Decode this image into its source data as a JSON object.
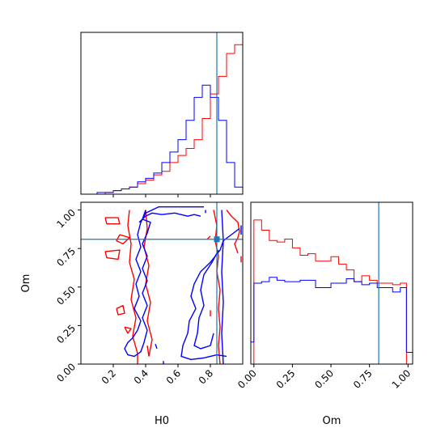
{
  "chart_data": {
    "type": "corner",
    "params": [
      "H0",
      "Om"
    ],
    "truth": {
      "H0": 0.84,
      "Om": 0.81
    },
    "colors": {
      "red": "#ff0000",
      "blue": "#0000ff",
      "truth": "#1f77b4"
    },
    "panels": [
      {
        "id": "H0-hist",
        "type": "histogram",
        "xlim": [
          0.0,
          1.0
        ],
        "bin_edges": [
          0.0,
          0.05,
          0.1,
          0.15,
          0.2,
          0.25,
          0.3,
          0.35,
          0.4,
          0.45,
          0.5,
          0.55,
          0.6,
          0.65,
          0.7,
          0.75,
          0.8,
          0.85,
          0.9,
          0.95,
          1.0
        ],
        "series": [
          {
            "name": "red",
            "color": "#ff0000",
            "values": [
              0,
              0,
              0,
              0.01,
              0.02,
              0.03,
              0.04,
              0.06,
              0.08,
              0.11,
              0.13,
              0.18,
              0.22,
              0.26,
              0.31,
              0.43,
              0.57,
              0.67,
              0.8,
              0.85
            ]
          },
          {
            "name": "blue",
            "color": "#0000ff",
            "values": [
              0,
              0,
              0.01,
              0.01,
              0.02,
              0.03,
              0.04,
              0.07,
              0.09,
              0.12,
              0.18,
              0.24,
              0.31,
              0.42,
              0.55,
              0.62,
              0.55,
              0.42,
              0.18,
              0.04
            ]
          }
        ],
        "ylim": [
          0,
          0.92
        ]
      },
      {
        "id": "H0-Om-contour",
        "type": "contour",
        "xlim": [
          0.0,
          1.0
        ],
        "ylim": [
          0.0,
          1.05
        ],
        "xlabel": "H0",
        "ylabel": "Om",
        "xticks": [
          "0.2",
          "0.4",
          "0.6",
          "0.8"
        ],
        "yticks": [
          "0.00",
          "0.25",
          "0.50",
          "0.75",
          "1.00"
        ],
        "series": [
          {
            "name": "red",
            "color": "#ff0000",
            "paths": [
              [
                [
                  0.3,
                  1.0
                ],
                [
                  0.29,
                  0.9
                ],
                [
                  0.31,
                  0.78
                ],
                [
                  0.3,
                  0.66
                ],
                [
                  0.33,
                  0.55
                ],
                [
                  0.31,
                  0.42
                ],
                [
                  0.34,
                  0.3
                ],
                [
                  0.32,
                  0.18
                ],
                [
                  0.35,
                  0.07
                ],
                [
                  0.35,
                  0.0
                ]
              ],
              [
                [
                  0.4,
                  1.0
                ],
                [
                  0.41,
                  0.88
                ],
                [
                  0.39,
                  0.76
                ],
                [
                  0.42,
                  0.64
                ],
                [
                  0.4,
                  0.52
                ],
                [
                  0.43,
                  0.4
                ],
                [
                  0.41,
                  0.28
                ],
                [
                  0.44,
                  0.16
                ],
                [
                  0.42,
                  0.05
                ]
              ],
              [
                [
                  0.15,
                  0.95
                ],
                [
                  0.23,
                  0.95
                ],
                [
                  0.24,
                  0.91
                ],
                [
                  0.16,
                  0.91
                ],
                [
                  0.15,
                  0.95
                ]
              ],
              [
                [
                  0.24,
                  0.84
                ],
                [
                  0.3,
                  0.82
                ],
                [
                  0.26,
                  0.78
                ],
                [
                  0.22,
                  0.8
                ],
                [
                  0.24,
                  0.84
                ]
              ],
              [
                [
                  0.15,
                  0.73
                ],
                [
                  0.24,
                  0.74
                ],
                [
                  0.23,
                  0.68
                ],
                [
                  0.16,
                  0.69
                ],
                [
                  0.15,
                  0.73
                ]
              ],
              [
                [
                  0.22,
                  0.36
                ],
                [
                  0.26,
                  0.38
                ],
                [
                  0.27,
                  0.33
                ],
                [
                  0.23,
                  0.32
                ],
                [
                  0.22,
                  0.36
                ]
              ],
              [
                [
                  0.27,
                  0.24
                ],
                [
                  0.31,
                  0.23
                ],
                [
                  0.29,
                  0.2
                ],
                [
                  0.27,
                  0.24
                ]
              ],
              [
                [
                  0.41,
                  0.12
                ],
                [
                  0.42,
                  0.05
                ]
              ],
              [
                [
                  0.82,
                  1.0
                ],
                [
                  0.84,
                  0.9
                ],
                [
                  0.83,
                  0.8
                ],
                [
                  0.85,
                  0.7
                ],
                [
                  0.84,
                  0.6
                ],
                [
                  0.86,
                  0.48
                ],
                [
                  0.85,
                  0.36
                ],
                [
                  0.86,
                  0.24
                ],
                [
                  0.85,
                  0.12
                ],
                [
                  0.86,
                  0.0
                ]
              ],
              [
                [
                  0.9,
                  1.0
                ],
                [
                  0.93,
                  0.96
                ],
                [
                  0.97,
                  0.92
                ],
                [
                  0.98,
                  0.86
                ],
                [
                  0.97,
                  0.82
                ],
                [
                  0.95,
                  0.78
                ],
                [
                  0.97,
                  0.72
                ]
              ],
              [
                [
                  0.8,
                  0.35
                ],
                [
                  0.8,
                  0.31
                ]
              ],
              [
                [
                  0.78,
                  0.81
                ],
                [
                  0.8,
                  0.83
                ]
              ],
              [
                [
                  0.99,
                  0.7
                ],
                [
                  0.99,
                  0.66
                ]
              ]
            ]
          },
          {
            "name": "blue",
            "color": "#0000ff",
            "paths": [
              [
                [
                  0.4,
                  1.0
                ],
                [
                  0.38,
                  0.94
                ],
                [
                  0.43,
                  0.92
                ],
                [
                  0.41,
                  0.85
                ],
                [
                  0.38,
                  0.78
                ],
                [
                  0.41,
                  0.7
                ],
                [
                  0.38,
                  0.62
                ],
                [
                  0.41,
                  0.54
                ],
                [
                  0.38,
                  0.46
                ],
                [
                  0.41,
                  0.38
                ],
                [
                  0.38,
                  0.3
                ],
                [
                  0.41,
                  0.22
                ],
                [
                  0.39,
                  0.14
                ],
                [
                  0.37,
                  0.08
                ],
                [
                  0.33,
                  0.05
                ],
                [
                  0.29,
                  0.06
                ],
                [
                  0.27,
                  0.1
                ],
                [
                  0.29,
                  0.14
                ],
                [
                  0.32,
                  0.17
                ],
                [
                  0.35,
                  0.22
                ],
                [
                  0.37,
                  0.28
                ],
                [
                  0.33,
                  0.36
                ],
                [
                  0.36,
                  0.44
                ],
                [
                  0.34,
                  0.52
                ],
                [
                  0.37,
                  0.6
                ],
                [
                  0.34,
                  0.68
                ],
                [
                  0.37,
                  0.76
                ],
                [
                  0.35,
                  0.84
                ],
                [
                  0.37,
                  0.92
                ],
                [
                  0.4,
                  0.98
                ],
                [
                  0.48,
                  1.02
                ],
                [
                  0.58,
                  1.02
                ],
                [
                  0.7,
                  1.02
                ],
                [
                  0.76,
                  1.02
                ]
              ],
              [
                [
                  0.36,
                  0.92
                ],
                [
                  0.4,
                  0.96
                ],
                [
                  0.44,
                  0.98
                ],
                [
                  0.5,
                  0.97
                ],
                [
                  0.58,
                  0.98
                ],
                [
                  0.66,
                  0.96
                ],
                [
                  0.7,
                  0.97
                ],
                [
                  0.74,
                  0.96
                ]
              ],
              [
                [
                  0.98,
                  0.88
                ],
                [
                  0.93,
                  0.84
                ],
                [
                  0.88,
                  0.8
                ],
                [
                  0.86,
                  0.74
                ],
                [
                  0.8,
                  0.66
                ],
                [
                  0.74,
                  0.6
                ],
                [
                  0.7,
                  0.52
                ],
                [
                  0.68,
                  0.44
                ],
                [
                  0.71,
                  0.36
                ],
                [
                  0.67,
                  0.28
                ],
                [
                  0.66,
                  0.2
                ],
                [
                  0.63,
                  0.12
                ],
                [
                  0.62,
                  0.05
                ],
                [
                  0.68,
                  0.03
                ],
                [
                  0.76,
                  0.04
                ],
                [
                  0.84,
                  0.06
                ],
                [
                  0.9,
                  0.05
                ]
              ],
              [
                [
                  0.85,
                  0.74
                ],
                [
                  0.81,
                  0.66
                ],
                [
                  0.76,
                  0.58
                ],
                [
                  0.74,
                  0.48
                ],
                [
                  0.76,
                  0.38
                ],
                [
                  0.73,
                  0.3
                ],
                [
                  0.72,
                  0.2
                ],
                [
                  0.7,
                  0.12
                ],
                [
                  0.74,
                  0.1
                ],
                [
                  0.8,
                  0.12
                ],
                [
                  0.82,
                  0.2
                ]
              ],
              [
                [
                  0.87,
                  1.0
                ],
                [
                  0.88,
                  0.8
                ],
                [
                  0.87,
                  0.6
                ],
                [
                  0.88,
                  0.4
                ],
                [
                  0.87,
                  0.2
                ],
                [
                  0.88,
                  0.0
                ]
              ],
              [
                [
                  0.99,
                  0.9
                ],
                [
                  0.99,
                  0.84
                ]
              ],
              [
                [
                  0.46,
                  0.13
                ],
                [
                  0.47,
                  0.1
                ]
              ],
              [
                [
                  0.51,
                  0.02
                ],
                [
                  0.51,
                  0.0
                ]
              ],
              [
                [
                  0.77,
                  1.0
                ],
                [
                  0.77,
                  0.98
                ]
              ]
            ]
          }
        ]
      },
      {
        "id": "Om-hist",
        "type": "histogram",
        "xlim": [
          -0.02,
          1.03
        ],
        "xlabel": "Om",
        "xticks": [
          "0.00",
          "0.25",
          "0.50",
          "0.75",
          "1.00"
        ],
        "bin_edges": [
          -0.02,
          0.0,
          0.05,
          0.1,
          0.15,
          0.2,
          0.25,
          0.3,
          0.35,
          0.4,
          0.45,
          0.5,
          0.55,
          0.6,
          0.65,
          0.7,
          0.75,
          0.8,
          0.85,
          0.9,
          0.95,
          0.99,
          1.03
        ],
        "series": [
          {
            "name": "red",
            "color": "#ff0000",
            "values": [
              0.0,
              0.98,
              0.91,
              0.84,
              0.83,
              0.85,
              0.79,
              0.74,
              0.75,
              0.7,
              0.7,
              0.73,
              0.68,
              0.64,
              0.56,
              0.6,
              0.57,
              0.55,
              0.55,
              0.54,
              0.55,
              0.0
            ]
          },
          {
            "name": "blue",
            "color": "#0000ff",
            "values": [
              0.15,
              0.55,
              0.56,
              0.59,
              0.57,
              0.56,
              0.56,
              0.57,
              0.57,
              0.52,
              0.52,
              0.55,
              0.55,
              0.58,
              0.56,
              0.54,
              0.55,
              0.52,
              0.52,
              0.49,
              0.52,
              0.08
            ]
          }
        ],
        "ylim": [
          0,
          1.1
        ]
      }
    ]
  }
}
